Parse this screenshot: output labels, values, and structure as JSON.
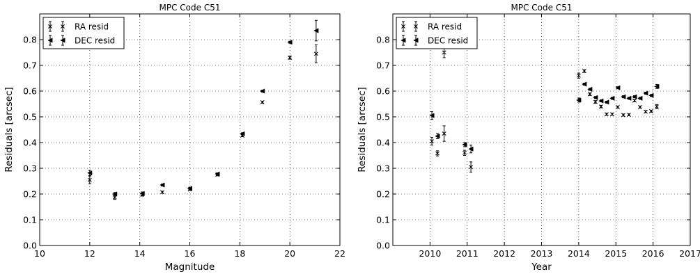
{
  "chart_data": [
    {
      "type": "scatter",
      "title": "MPC Code C51",
      "xlabel": "Magnitude",
      "ylabel": "Residuals [arcsec]",
      "xlim": [
        10,
        22
      ],
      "ylim": [
        0.0,
        0.9
      ],
      "xticks": [
        "10",
        "12",
        "14",
        "16",
        "18",
        "20",
        "22"
      ],
      "yticks": [
        "0.0",
        "0.1",
        "0.2",
        "0.3",
        "0.4",
        "0.5",
        "0.6",
        "0.7",
        "0.8"
      ],
      "grid": true,
      "legend_position": "top-left",
      "series": [
        {
          "name": "RA resid",
          "marker": "x",
          "points": [
            {
              "x": 12.0,
              "y": 0.255,
              "err": 0.015
            },
            {
              "x": 13.0,
              "y": 0.187,
              "err": 0.008
            },
            {
              "x": 14.1,
              "y": 0.198,
              "err": 0.006
            },
            {
              "x": 14.9,
              "y": 0.207,
              "err": 0.004
            },
            {
              "x": 16.0,
              "y": 0.218,
              "err": 0.004
            },
            {
              "x": 17.1,
              "y": 0.275,
              "err": 0.004
            },
            {
              "x": 18.1,
              "y": 0.427,
              "err": 0.004
            },
            {
              "x": 18.9,
              "y": 0.557,
              "err": 0.004
            },
            {
              "x": 20.0,
              "y": 0.73,
              "err": 0.006
            },
            {
              "x": 21.05,
              "y": 0.745,
              "err": 0.035
            }
          ]
        },
        {
          "name": "DEC resid",
          "marker": "triangle-left",
          "points": [
            {
              "x": 12.0,
              "y": 0.282,
              "err": 0.01
            },
            {
              "x": 13.0,
              "y": 0.2,
              "err": 0.006
            },
            {
              "x": 14.1,
              "y": 0.202,
              "err": 0.006
            },
            {
              "x": 14.9,
              "y": 0.235,
              "err": 0.004
            },
            {
              "x": 16.0,
              "y": 0.222,
              "err": 0.004
            },
            {
              "x": 17.1,
              "y": 0.278,
              "err": 0.004
            },
            {
              "x": 18.1,
              "y": 0.434,
              "err": 0.004
            },
            {
              "x": 18.9,
              "y": 0.6,
              "err": 0.004
            },
            {
              "x": 20.0,
              "y": 0.79,
              "err": 0.004
            },
            {
              "x": 21.05,
              "y": 0.835,
              "err": 0.04
            }
          ]
        }
      ]
    },
    {
      "type": "scatter",
      "title": "MPC Code C51",
      "xlabel": "Year",
      "ylabel": "Residuals [arcsec]",
      "xlim": [
        2009,
        2017
      ],
      "ylim": [
        0.0,
        0.9
      ],
      "xticks": [
        "2010",
        "2011",
        "2012",
        "2013",
        "2014",
        "2015",
        "2016",
        "2017"
      ],
      "yticks": [
        "0.0",
        "0.1",
        "0.2",
        "0.3",
        "0.4",
        "0.5",
        "0.6",
        "0.7",
        "0.8"
      ],
      "grid": true,
      "legend_position": "top-left",
      "series": [
        {
          "name": "RA resid",
          "marker": "x",
          "points": [
            {
              "x": 2010.05,
              "y": 0.405,
              "err": 0.015
            },
            {
              "x": 2010.2,
              "y": 0.358,
              "err": 0.01
            },
            {
              "x": 2010.38,
              "y": 0.435,
              "err": 0.03
            },
            {
              "x": 2010.38,
              "y": 0.75,
              "err": 0.02
            },
            {
              "x": 2010.93,
              "y": 0.36,
              "err": 0.01
            },
            {
              "x": 2011.1,
              "y": 0.305,
              "err": 0.02
            },
            {
              "x": 2014.0,
              "y": 0.66,
              "err": 0.01
            },
            {
              "x": 2014.15,
              "y": 0.678,
              "err": 0.005
            },
            {
              "x": 2014.3,
              "y": 0.588,
              "err": 0.005
            },
            {
              "x": 2014.45,
              "y": 0.558,
              "err": 0.005
            },
            {
              "x": 2014.6,
              "y": 0.54,
              "err": 0.005
            },
            {
              "x": 2014.75,
              "y": 0.51,
              "err": 0.004
            },
            {
              "x": 2014.9,
              "y": 0.51,
              "err": 0.004
            },
            {
              "x": 2015.05,
              "y": 0.538,
              "err": 0.004
            },
            {
              "x": 2015.2,
              "y": 0.507,
              "err": 0.004
            },
            {
              "x": 2015.35,
              "y": 0.508,
              "err": 0.004
            },
            {
              "x": 2015.5,
              "y": 0.563,
              "err": 0.004
            },
            {
              "x": 2015.65,
              "y": 0.538,
              "err": 0.004
            },
            {
              "x": 2015.8,
              "y": 0.52,
              "err": 0.004
            },
            {
              "x": 2015.95,
              "y": 0.522,
              "err": 0.004
            },
            {
              "x": 2016.1,
              "y": 0.54,
              "err": 0.008
            }
          ]
        },
        {
          "name": "DEC resid",
          "marker": "triangle-left",
          "points": [
            {
              "x": 2010.05,
              "y": 0.505,
              "err": 0.015
            },
            {
              "x": 2010.2,
              "y": 0.425,
              "err": 0.01
            },
            {
              "x": 2010.93,
              "y": 0.392,
              "err": 0.008
            },
            {
              "x": 2011.1,
              "y": 0.375,
              "err": 0.015
            },
            {
              "x": 2014.0,
              "y": 0.565,
              "err": 0.008
            },
            {
              "x": 2014.15,
              "y": 0.627,
              "err": 0.004
            },
            {
              "x": 2014.3,
              "y": 0.607,
              "err": 0.004
            },
            {
              "x": 2014.45,
              "y": 0.575,
              "err": 0.004
            },
            {
              "x": 2014.6,
              "y": 0.562,
              "err": 0.004
            },
            {
              "x": 2014.75,
              "y": 0.557,
              "err": 0.004
            },
            {
              "x": 2014.9,
              "y": 0.572,
              "err": 0.004
            },
            {
              "x": 2015.05,
              "y": 0.613,
              "err": 0.004
            },
            {
              "x": 2015.2,
              "y": 0.578,
              "err": 0.004
            },
            {
              "x": 2015.35,
              "y": 0.572,
              "err": 0.004
            },
            {
              "x": 2015.5,
              "y": 0.578,
              "err": 0.004
            },
            {
              "x": 2015.65,
              "y": 0.572,
              "err": 0.004
            },
            {
              "x": 2015.8,
              "y": 0.592,
              "err": 0.004
            },
            {
              "x": 2015.95,
              "y": 0.583,
              "err": 0.004
            },
            {
              "x": 2016.1,
              "y": 0.618,
              "err": 0.008
            }
          ]
        }
      ]
    }
  ]
}
